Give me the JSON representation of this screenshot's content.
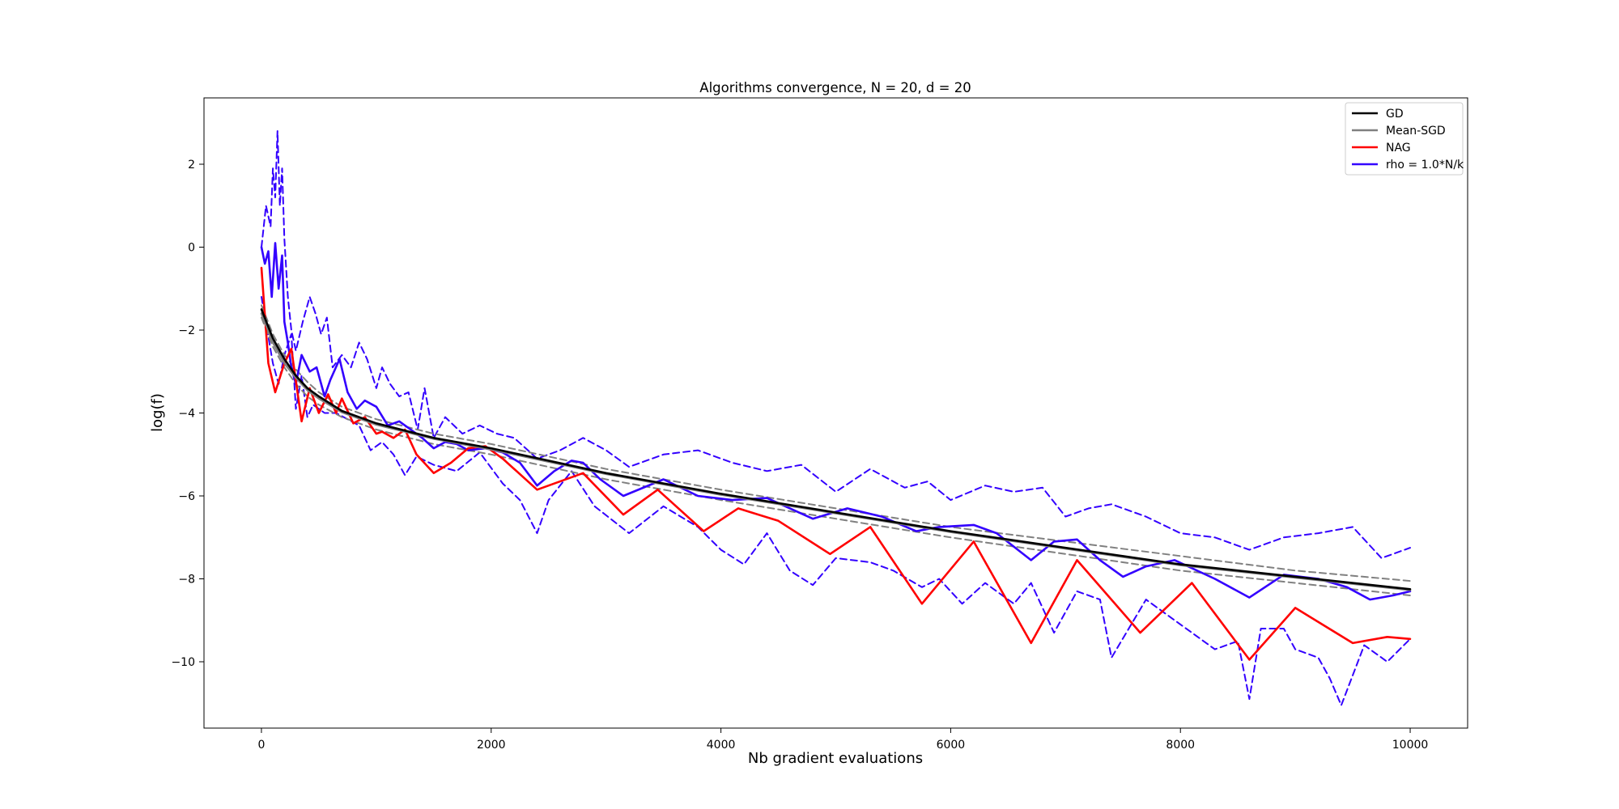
{
  "chart_data": {
    "type": "line",
    "title": "Algorithms convergence, N = 20, d = 20",
    "xlabel": "Nb gradient evaluations",
    "ylabel": "log(f)",
    "xlim": [
      -500,
      10500
    ],
    "ylim": [
      -11.6,
      3.6
    ],
    "xticks": [
      0,
      2000,
      4000,
      6000,
      8000,
      10000
    ],
    "xtick_labels": [
      "0",
      "2000",
      "4000",
      "6000",
      "8000",
      "10000"
    ],
    "yticks": [
      2,
      0,
      -2,
      -4,
      -6,
      -8,
      -10
    ],
    "ytick_labels": [
      "2",
      "0",
      "−2",
      "−4",
      "−6",
      "−8",
      "−10"
    ],
    "grid": false,
    "legend_position": "top-right",
    "legend": [
      {
        "label": "GD",
        "color": "#000000"
      },
      {
        "label": "Mean-SGD",
        "color": "#808080"
      },
      {
        "label": "NAG",
        "color": "#ff0000"
      },
      {
        "label": "rho = 1.0*N/k",
        "color": "#3300ff"
      }
    ],
    "series": [
      {
        "name": "GD",
        "color": "#000000",
        "style": "solid",
        "x": [
          0,
          100,
          200,
          300,
          400,
          500,
          700,
          1000,
          1500,
          2000,
          3000,
          4000,
          5000,
          6000,
          7000,
          8000,
          9000,
          10000
        ],
        "y": [
          -1.5,
          -2.2,
          -2.7,
          -3.1,
          -3.4,
          -3.6,
          -3.95,
          -4.25,
          -4.6,
          -4.85,
          -5.45,
          -5.95,
          -6.4,
          -6.85,
          -7.25,
          -7.65,
          -7.95,
          -8.25
        ]
      },
      {
        "name": "Mean-SGD",
        "color": "#808080",
        "style": "solid",
        "x": [
          0,
          100,
          200,
          300,
          400,
          500,
          700,
          1000,
          1500,
          2000,
          3000,
          4000,
          5000,
          6000,
          7000,
          8000,
          9000,
          10000
        ],
        "y": [
          -1.6,
          -2.3,
          -2.8,
          -3.15,
          -3.45,
          -3.65,
          -3.98,
          -4.28,
          -4.62,
          -4.88,
          -5.47,
          -5.97,
          -6.42,
          -6.87,
          -7.27,
          -7.67,
          -7.97,
          -8.27
        ]
      },
      {
        "name": "",
        "color": "#808080",
        "style": "dashed",
        "x": [
          0,
          100,
          200,
          300,
          400,
          500,
          700,
          1000,
          1500,
          2000,
          3000,
          4000,
          5000,
          6000,
          7000,
          8000,
          9000,
          10000
        ],
        "y": [
          -1.4,
          -2.1,
          -2.6,
          -2.95,
          -3.25,
          -3.5,
          -3.85,
          -4.15,
          -4.5,
          -4.75,
          -5.35,
          -5.85,
          -6.3,
          -6.75,
          -7.1,
          -7.45,
          -7.8,
          -8.05
        ]
      },
      {
        "name": "",
        "color": "#808080",
        "style": "dashed",
        "x": [
          0,
          100,
          200,
          300,
          400,
          500,
          700,
          1000,
          1500,
          2000,
          3000,
          4000,
          5000,
          6000,
          7000,
          8000,
          9000,
          10000
        ],
        "y": [
          -1.7,
          -2.4,
          -2.9,
          -3.3,
          -3.6,
          -3.8,
          -4.1,
          -4.4,
          -4.75,
          -5.0,
          -5.6,
          -6.1,
          -6.55,
          -7.0,
          -7.4,
          -7.8,
          -8.1,
          -8.4
        ]
      },
      {
        "name": "NAG",
        "color": "#ff0000",
        "style": "solid",
        "x": [
          0,
          60,
          120,
          200,
          260,
          350,
          420,
          500,
          580,
          650,
          700,
          800,
          900,
          1000,
          1050,
          1150,
          1250,
          1350,
          1500,
          1650,
          1800,
          1950,
          2100,
          2400,
          2800,
          3150,
          3450,
          3850,
          4150,
          4500,
          4950,
          5300,
          5750,
          6200,
          6700,
          7100,
          7650,
          8100,
          8600,
          9000,
          9500,
          9800,
          10000
        ],
        "y": [
          -0.5,
          -2.8,
          -3.5,
          -2.8,
          -2.45,
          -4.2,
          -3.4,
          -4.0,
          -3.55,
          -4.0,
          -3.65,
          -4.25,
          -4.1,
          -4.5,
          -4.45,
          -4.6,
          -4.4,
          -5.0,
          -5.45,
          -5.2,
          -4.85,
          -4.8,
          -5.1,
          -5.85,
          -5.45,
          -6.45,
          -5.85,
          -6.85,
          -6.3,
          -6.6,
          -7.4,
          -6.75,
          -8.6,
          -7.1,
          -9.55,
          -7.55,
          -9.3,
          -8.1,
          -9.95,
          -8.7,
          -9.55,
          -9.4,
          -9.45
        ]
      },
      {
        "name": "rho = 1.0*N/k",
        "color": "#3300ff",
        "style": "solid",
        "x": [
          0,
          30,
          60,
          90,
          120,
          150,
          180,
          200,
          230,
          260,
          300,
          350,
          420,
          480,
          550,
          600,
          680,
          750,
          830,
          900,
          1000,
          1100,
          1200,
          1300,
          1400,
          1500,
          1600,
          1700,
          1800,
          1950,
          2100,
          2250,
          2400,
          2550,
          2700,
          2800,
          2950,
          3150,
          3500,
          3800,
          4100,
          4400,
          4800,
          5100,
          5400,
          5700,
          5900,
          6200,
          6400,
          6700,
          6900,
          7100,
          7300,
          7500,
          7700,
          7950,
          8300,
          8600,
          8900,
          9200,
          9450,
          9650,
          9850,
          10000
        ],
        "y": [
          0.0,
          -0.4,
          -0.1,
          -1.2,
          0.1,
          -1.0,
          -0.2,
          -1.8,
          -2.3,
          -2.9,
          -3.3,
          -2.6,
          -3.0,
          -2.9,
          -3.6,
          -3.2,
          -2.7,
          -3.5,
          -3.9,
          -3.7,
          -3.85,
          -4.3,
          -4.2,
          -4.4,
          -4.6,
          -4.85,
          -4.7,
          -4.75,
          -4.9,
          -4.85,
          -4.95,
          -5.2,
          -5.75,
          -5.4,
          -5.15,
          -5.2,
          -5.6,
          -6.0,
          -5.6,
          -6.0,
          -6.1,
          -6.05,
          -6.55,
          -6.3,
          -6.5,
          -6.85,
          -6.75,
          -6.7,
          -6.9,
          -7.55,
          -7.1,
          -7.05,
          -7.55,
          -7.95,
          -7.7,
          -7.55,
          -8.0,
          -8.45,
          -7.9,
          -8.0,
          -8.2,
          -8.5,
          -8.4,
          -8.3
        ]
      },
      {
        "name": "",
        "color": "#3300ff",
        "style": "dashed",
        "x": [
          0,
          40,
          80,
          100,
          120,
          140,
          160,
          180,
          200,
          230,
          260,
          300,
          360,
          420,
          470,
          520,
          570,
          620,
          700,
          780,
          850,
          920,
          1000,
          1050,
          1120,
          1200,
          1280,
          1360,
          1420,
          1500,
          1600,
          1750,
          1900,
          2050,
          2200,
          2400,
          2600,
          2800,
          3000,
          3200,
          3500,
          3800,
          4100,
          4400,
          4700,
          5000,
          5300,
          5600,
          5800,
          6000,
          6300,
          6550,
          6800,
          7000,
          7200,
          7400,
          7700,
          8000,
          8300,
          8600,
          8900,
          9200,
          9500,
          9750,
          10000
        ],
        "y": [
          0.0,
          1.0,
          0.5,
          1.9,
          1.2,
          2.8,
          1.0,
          1.9,
          0.2,
          -1.2,
          -2.0,
          -2.5,
          -1.8,
          -1.2,
          -1.6,
          -2.1,
          -1.7,
          -2.9,
          -2.6,
          -2.9,
          -2.3,
          -2.7,
          -3.4,
          -2.9,
          -3.3,
          -3.6,
          -3.5,
          -4.4,
          -3.4,
          -4.6,
          -4.1,
          -4.5,
          -4.3,
          -4.5,
          -4.6,
          -5.1,
          -4.9,
          -4.6,
          -4.9,
          -5.3,
          -5.0,
          -4.9,
          -5.2,
          -5.4,
          -5.25,
          -5.9,
          -5.35,
          -5.8,
          -5.65,
          -6.1,
          -5.75,
          -5.9,
          -5.8,
          -6.5,
          -6.3,
          -6.2,
          -6.5,
          -6.9,
          -7.0,
          -7.3,
          -7.0,
          -6.9,
          -6.75,
          -7.5,
          -7.25
        ]
      },
      {
        "name": "",
        "color": "#3300ff",
        "style": "dashed",
        "x": [
          0,
          100,
          150,
          200,
          260,
          300,
          350,
          400,
          450,
          550,
          650,
          750,
          850,
          950,
          1050,
          1150,
          1250,
          1350,
          1500,
          1700,
          1900,
          2100,
          2250,
          2400,
          2500,
          2700,
          2900,
          3200,
          3500,
          3800,
          4000,
          4200,
          4400,
          4600,
          4800,
          5000,
          5300,
          5500,
          5750,
          5900,
          6100,
          6300,
          6550,
          6700,
          6900,
          7100,
          7300,
          7400,
          7700,
          7900,
          8100,
          8300,
          8500,
          8600,
          8700,
          8900,
          9000,
          9200,
          9300,
          9400,
          9600,
          9800,
          10000
        ],
        "y": [
          -1.2,
          -2.8,
          -3.3,
          -2.6,
          -2.1,
          -3.9,
          -3.1,
          -4.1,
          -3.8,
          -4.0,
          -4.0,
          -4.15,
          -4.3,
          -4.9,
          -4.7,
          -5.0,
          -5.5,
          -5.05,
          -5.25,
          -5.4,
          -4.95,
          -5.7,
          -6.1,
          -6.9,
          -6.1,
          -5.4,
          -6.25,
          -6.9,
          -6.25,
          -6.75,
          -7.3,
          -7.65,
          -6.9,
          -7.8,
          -8.15,
          -7.5,
          -7.6,
          -7.8,
          -8.2,
          -8.0,
          -8.6,
          -8.1,
          -8.6,
          -8.1,
          -9.3,
          -8.3,
          -8.5,
          -9.9,
          -8.5,
          -8.9,
          -9.3,
          -9.7,
          -9.5,
          -10.9,
          -9.2,
          -9.2,
          -9.7,
          -9.9,
          -10.4,
          -11.05,
          -9.6,
          -10.0,
          -9.45
        ]
      }
    ]
  }
}
